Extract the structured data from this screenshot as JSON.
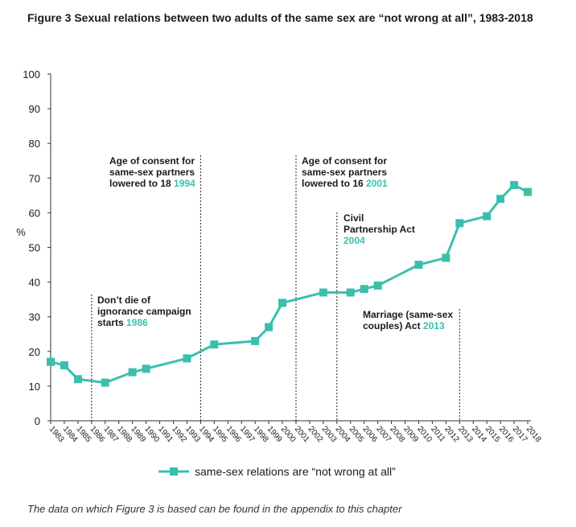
{
  "title": "Figure 3 Sexual relations between two adults of the same sex are “not wrong at all”, 1983-2018",
  "footnote": "The data on which Figure 3 is based can be found in the appendix to this chapter",
  "colors": {
    "series": "#3bbfad",
    "axis": "#333333"
  },
  "chart_data": {
    "type": "line",
    "ylabel": "%",
    "xlabel": "",
    "ylim": [
      0,
      100
    ],
    "yticks": [
      0,
      10,
      20,
      30,
      40,
      50,
      60,
      70,
      80,
      90,
      100
    ],
    "x_categories": [
      "1983",
      "1984",
      "1985",
      "1986",
      "1987",
      "1988",
      "1989",
      "1990",
      "1991",
      "1992",
      "1993",
      "1994",
      "1995",
      "1996",
      "1997",
      "1998",
      "1999",
      "2000",
      "2001",
      "2002",
      "2003",
      "2004",
      "2005",
      "2006",
      "2007",
      "2008",
      "2009",
      "2010",
      "2011",
      "2012",
      "2013",
      "2014",
      "2015",
      "2016",
      "2017",
      "2018"
    ],
    "series": [
      {
        "name": "same-sex relations are “not wrong at all”",
        "marker": "square",
        "points": [
          {
            "x": "1983",
            "y": 17
          },
          {
            "x": "1984",
            "y": 16
          },
          {
            "x": "1985",
            "y": 12
          },
          {
            "x": "1987",
            "y": 11
          },
          {
            "x": "1989",
            "y": 14
          },
          {
            "x": "1990",
            "y": 15
          },
          {
            "x": "1993",
            "y": 18
          },
          {
            "x": "1995",
            "y": 22
          },
          {
            "x": "1998",
            "y": 23
          },
          {
            "x": "1999",
            "y": 27
          },
          {
            "x": "2000",
            "y": 34
          },
          {
            "x": "2003",
            "y": 37
          },
          {
            "x": "2005",
            "y": 37
          },
          {
            "x": "2006",
            "y": 38
          },
          {
            "x": "2007",
            "y": 39
          },
          {
            "x": "2010",
            "y": 45
          },
          {
            "x": "2012",
            "y": 47
          },
          {
            "x": "2013",
            "y": 57
          },
          {
            "x": "2015",
            "y": 59
          },
          {
            "x": "2016",
            "y": 64
          },
          {
            "x": "2017",
            "y": 68
          },
          {
            "x": "2018",
            "y": 66
          }
        ]
      }
    ],
    "annotations": [
      {
        "id": "a1986",
        "lines": [
          "Don’t die of",
          "ignorance campaign",
          "starts"
        ],
        "year": "1986",
        "x": "1986"
      },
      {
        "id": "a1994",
        "lines": [
          "Age of consent for",
          "same-sex partners",
          "lowered to 18"
        ],
        "year": "1994",
        "x": "1994"
      },
      {
        "id": "a2001",
        "lines": [
          "Age of consent for",
          "same-sex partners",
          "lowered to 16"
        ],
        "year": "2001",
        "x": "2001"
      },
      {
        "id": "a2004",
        "lines": [
          "Civil",
          "Partnership Act"
        ],
        "year": "2004",
        "x": "2004"
      },
      {
        "id": "a2013",
        "lines": [
          "Marriage (same-sex",
          "couples) Act"
        ],
        "year": "2013",
        "x": "2013"
      }
    ],
    "legend": "bottom-center",
    "grid": false
  }
}
